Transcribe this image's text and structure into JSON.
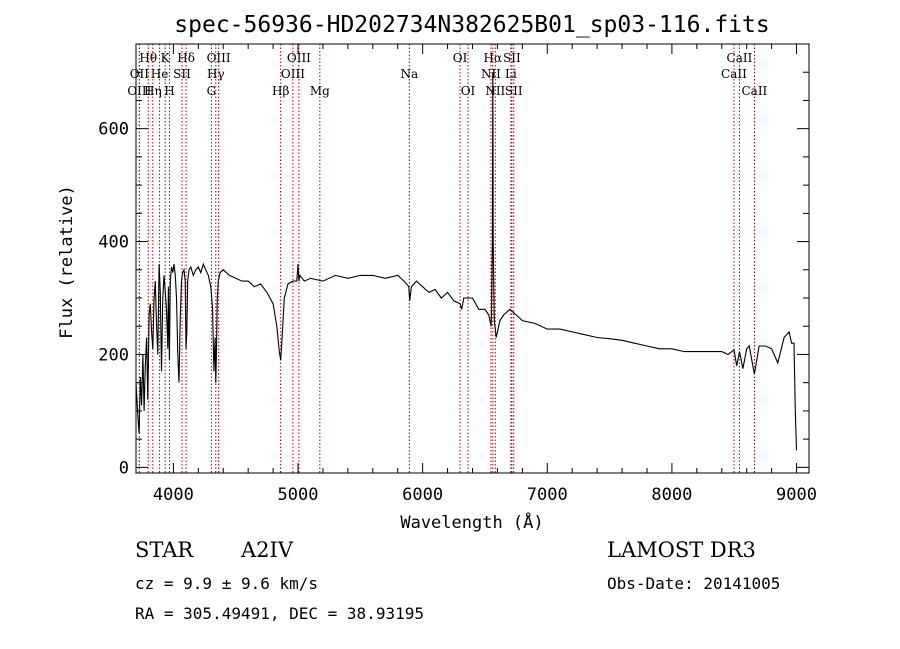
{
  "chart_data": {
    "type": "line",
    "title": "spec-56936-HD202734N382625B01_sp03-116.fits",
    "xlabel": "Wavelength (Å)",
    "ylabel": "Flux (relative)",
    "xlim": [
      3700,
      9100
    ],
    "ylim": [
      -10,
      750
    ],
    "xticks": [
      4000,
      5000,
      6000,
      7000,
      8000,
      9000
    ],
    "yticks": [
      0,
      200,
      400,
      600
    ],
    "grid": false,
    "series": [
      {
        "x": [
          3700,
          3715,
          3725,
          3735,
          3745,
          3755,
          3765,
          3775,
          3785,
          3795,
          3805,
          3815,
          3825,
          3835,
          3845,
          3855,
          3865,
          3875,
          3885,
          3895,
          3905,
          3915,
          3925,
          3935,
          3945,
          3955,
          3960,
          3968,
          3975,
          3985,
          3995,
          4005,
          4015,
          4025,
          4035,
          4045,
          4055,
          4065,
          4075,
          4085,
          4095,
          4101,
          4108,
          4115,
          4125,
          4140,
          4160,
          4180,
          4200,
          4220,
          4240,
          4260,
          4280,
          4300,
          4315,
          4325,
          4335,
          4340,
          4345,
          4352,
          4360,
          4375,
          4400,
          4450,
          4500,
          4550,
          4600,
          4650,
          4700,
          4750,
          4800,
          4830,
          4850,
          4861,
          4872,
          4890,
          4920,
          4960,
          4990,
          5000,
          5007,
          5015,
          5050,
          5100,
          5200,
          5300,
          5400,
          5500,
          5600,
          5700,
          5800,
          5850,
          5889,
          5896,
          5910,
          5950,
          6000,
          6050,
          6100,
          6150,
          6200,
          6250,
          6300,
          6313,
          6330,
          6400,
          6450,
          6500,
          6530,
          6550,
          6560,
          6563,
          6566,
          6575,
          6590,
          6620,
          6650,
          6700,
          6750,
          6800,
          6900,
          7000,
          7100,
          7200,
          7300,
          7400,
          7500,
          7600,
          7700,
          7800,
          7900,
          8000,
          8100,
          8200,
          8300,
          8400,
          8450,
          8498,
          8520,
          8542,
          8570,
          8600,
          8620,
          8662,
          8700,
          8750,
          8800,
          8850,
          8900,
          8940,
          8960,
          8980,
          8990,
          9000
        ],
        "y": [
          150,
          90,
          60,
          160,
          110,
          200,
          100,
          180,
          230,
          120,
          270,
          290,
          240,
          210,
          300,
          330,
          250,
          200,
          360,
          310,
          170,
          300,
          340,
          310,
          280,
          210,
          320,
          190,
          330,
          355,
          345,
          360,
          340,
          300,
          200,
          150,
          260,
          330,
          345,
          350,
          330,
          210,
          240,
          330,
          350,
          355,
          340,
          350,
          355,
          345,
          360,
          350,
          340,
          320,
          280,
          170,
          230,
          150,
          200,
          300,
          330,
          345,
          350,
          340,
          335,
          330,
          330,
          320,
          325,
          310,
          290,
          250,
          205,
          190,
          230,
          300,
          325,
          330,
          330,
          360,
          330,
          340,
          330,
          335,
          330,
          340,
          335,
          340,
          340,
          335,
          340,
          330,
          320,
          295,
          320,
          330,
          320,
          310,
          315,
          300,
          310,
          295,
          290,
          280,
          300,
          300,
          280,
          280,
          270,
          250,
          400,
          700,
          400,
          260,
          230,
          260,
          270,
          280,
          270,
          260,
          255,
          245,
          245,
          240,
          235,
          230,
          228,
          225,
          220,
          215,
          210,
          210,
          205,
          205,
          205,
          205,
          200,
          208,
          180,
          205,
          175,
          210,
          215,
          165,
          215,
          215,
          210,
          185,
          230,
          240,
          220,
          220,
          100,
          30
        ]
      }
    ],
    "line_markers": [
      {
        "label": "Hθ",
        "x": 3798,
        "row": 1
      },
      {
        "label": "OII",
        "x": 3727,
        "row": 2
      },
      {
        "label": "OIII",
        "x": 3727,
        "row": 3
      },
      {
        "label": "K",
        "x": 3934,
        "row": 1
      },
      {
        "label": "He",
        "x": 3889,
        "row": 2
      },
      {
        "label": "Hη",
        "x": 3835,
        "row": 3
      },
      {
        "label": "Hδ",
        "x": 4102,
        "row": 1
      },
      {
        "label": "SII",
        "x": 4069,
        "row": 2
      },
      {
        "label": "H",
        "x": 3969,
        "row": 3
      },
      {
        "label": "OIII",
        "x": 4363,
        "row": 1
      },
      {
        "label": "Hγ",
        "x": 4340,
        "row": 2
      },
      {
        "label": "G",
        "x": 4305,
        "row": 3
      },
      {
        "label": "OIII",
        "x": 5007,
        "row": 1
      },
      {
        "label": "OIII",
        "x": 4959,
        "row": 2
      },
      {
        "label": "Hβ",
        "x": 4861,
        "row": 3
      },
      {
        "label": "Mg",
        "x": 5175,
        "row": 3
      },
      {
        "label": "Na",
        "x": 5893,
        "row": 2
      },
      {
        "label": "OI",
        "x": 6300,
        "row": 1
      },
      {
        "label": "OI",
        "x": 6364,
        "row": 3
      },
      {
        "label": "Hα",
        "x": 6563,
        "row": 1
      },
      {
        "label": "SII",
        "x": 6716,
        "row": 1
      },
      {
        "label": "NII",
        "x": 6548,
        "row": 2
      },
      {
        "label": "Li",
        "x": 6708,
        "row": 2
      },
      {
        "label": "NII",
        "x": 6583,
        "row": 3
      },
      {
        "label": "SII",
        "x": 6731,
        "row": 3
      },
      {
        "label": "CaII",
        "x": 8542,
        "row": 1
      },
      {
        "label": "CaII",
        "x": 8498,
        "row": 2
      },
      {
        "label": "CaII",
        "x": 8662,
        "row": 3
      }
    ]
  },
  "info": {
    "object_class": "STAR",
    "subclass": "A2IV",
    "survey": "LAMOST DR3",
    "redshift_line": "cz = 9.9 ± 9.6 km/s",
    "obs_date_line": "Obs-Date: 20141005",
    "coords_line": "RA = 305.49491, DEC =  38.93195"
  }
}
